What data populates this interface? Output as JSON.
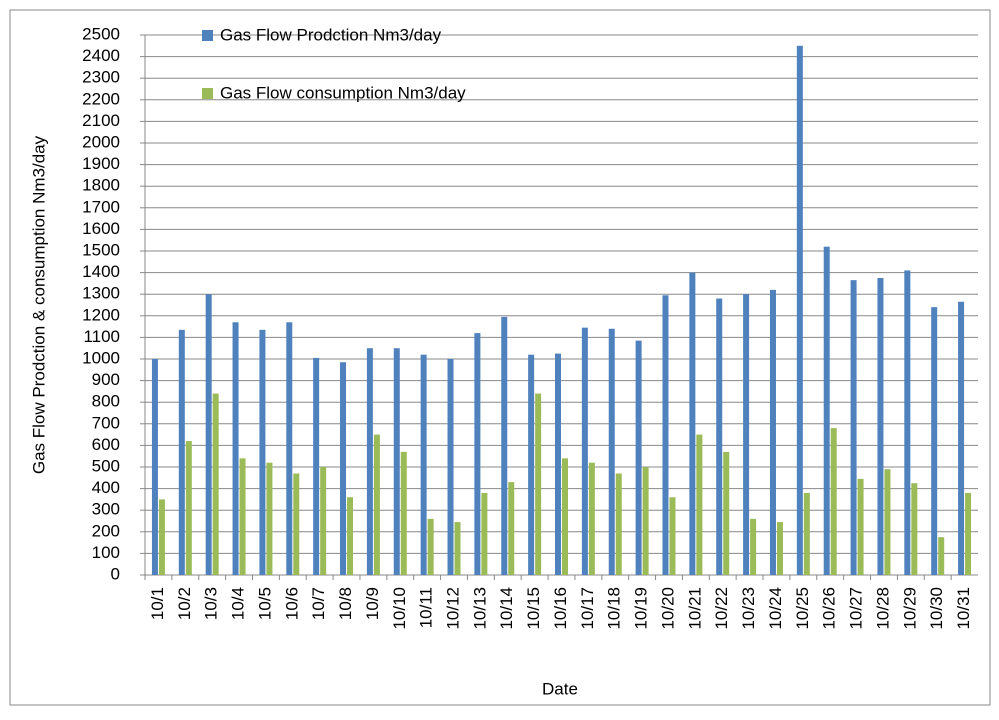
{
  "chart_data": {
    "type": "bar",
    "x_label": "Date",
    "y_label": "Gas Flow Prodction & consumption Nm3/day",
    "categories": [
      "10/1",
      "10/2",
      "10/3",
      "10/4",
      "10/5",
      "10/6",
      "10/7",
      "10/8",
      "10/9",
      "10/10",
      "10/11",
      "10/12",
      "10/13",
      "10/14",
      "10/15",
      "10/16",
      "10/17",
      "10/18",
      "10/19",
      "10/20",
      "10/21",
      "10/22",
      "10/23",
      "10/24",
      "10/25",
      "10/26",
      "10/27",
      "10/28",
      "10/29",
      "10/30",
      "10/31"
    ],
    "series": [
      {
        "name": "Gas Flow Prodction Nm3/day",
        "color": "#4f81bd",
        "values": [
          1000,
          1135,
          1300,
          1170,
          1135,
          1170,
          1005,
          985,
          1050,
          1050,
          1020,
          1000,
          1120,
          1195,
          1020,
          1025,
          1145,
          1140,
          1085,
          1295,
          1400,
          1280,
          1300,
          1320,
          2450,
          1520,
          1365,
          1375,
          1410,
          1240,
          1265
        ]
      },
      {
        "name": "Gas Flow consumption Nm3/day",
        "color": "#9bbb59",
        "values": [
          350,
          620,
          840,
          540,
          520,
          470,
          500,
          360,
          650,
          570,
          260,
          245,
          380,
          430,
          840,
          540,
          520,
          470,
          500,
          360,
          650,
          570,
          260,
          245,
          380,
          680,
          445,
          490,
          425,
          175,
          380
        ]
      }
    ],
    "ylim": [
      0,
      2500
    ],
    "yticks": [
      0,
      100,
      200,
      300,
      400,
      500,
      600,
      700,
      800,
      900,
      1000,
      1100,
      1200,
      1300,
      1400,
      1500,
      1600,
      1700,
      1800,
      1900,
      2000,
      2100,
      2200,
      2300,
      2400,
      2500
    ],
    "grid": true
  }
}
